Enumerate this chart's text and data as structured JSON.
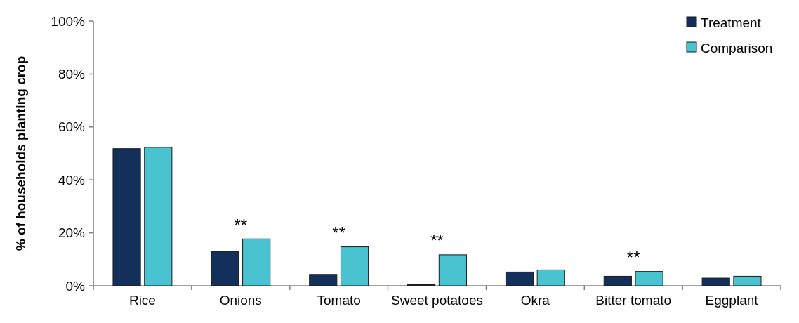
{
  "chart_data": {
    "type": "bar",
    "ylabel": "% of households planting crop",
    "categories": [
      "Rice",
      "Onions",
      "Tomato",
      "Sweet potatoes",
      "Okra",
      "Bitter tomato",
      "Eggplant"
    ],
    "series": [
      {
        "name": "Treatment",
        "color": "#12305a",
        "values": [
          51.8,
          12.9,
          4.3,
          0.4,
          5.2,
          3.6,
          2.9
        ]
      },
      {
        "name": "Comparison",
        "color": "#48c3cf",
        "values": [
          52.3,
          17.7,
          14.7,
          11.7,
          6.0,
          5.4,
          3.6
        ]
      }
    ],
    "ylim": [
      0,
      100
    ],
    "yticks": [
      {
        "value": 0,
        "label": "0%"
      },
      {
        "value": 20,
        "label": "20%"
      },
      {
        "value": 40,
        "label": "40%"
      },
      {
        "value": 60,
        "label": "60%"
      },
      {
        "value": 80,
        "label": "80%"
      },
      {
        "value": 100,
        "label": "100%"
      }
    ],
    "annotations": [
      {
        "text": "**",
        "x": "Onions",
        "y": 17.7
      },
      {
        "text": "**",
        "x": "Tomato",
        "y": 14.7
      },
      {
        "text": "**",
        "x": "Sweet potatoes",
        "y": 11.7
      },
      {
        "text": "**",
        "x": "Bitter tomato",
        "y": 5.4
      }
    ],
    "grid": false,
    "legend": "top right"
  }
}
